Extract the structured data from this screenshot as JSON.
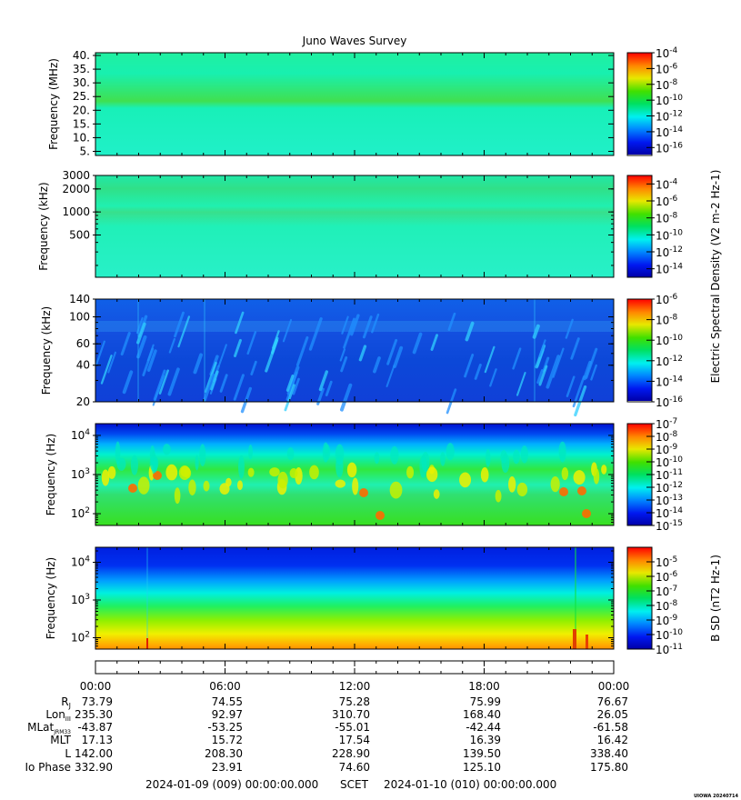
{
  "chart_data": {
    "type": "heatmap",
    "title": "Juno Waves Survey",
    "time_axis": {
      "ticks": [
        "00:00",
        "06:00",
        "12:00",
        "18:00",
        "00:00"
      ],
      "start": "2024-01-09 (009) 00:00:00.000",
      "scet_label": "SCET",
      "end": "2024-01-10 (010) 00:00:00.000"
    },
    "panels": [
      {
        "id": "p1",
        "ylabel": "Frequency (MHz)",
        "yscale": "linear",
        "ylim": [
          3.5,
          41
        ],
        "yticks": [
          "40.",
          "35.",
          "30.",
          "25.",
          "20.",
          "15.",
          "10.",
          "5."
        ],
        "ytick_values": [
          40,
          35,
          30,
          25,
          20,
          15,
          10,
          5
        ],
        "colorbar": {
          "ticks": [
            "10-4",
            "10-6",
            "10-8",
            "10-10",
            "10-12",
            "10-14",
            "10-16"
          ],
          "exp": [
            -4,
            -6,
            -8,
            -10,
            -12,
            -14,
            -16
          ],
          "range": [
            -17,
            -4
          ]
        }
      },
      {
        "id": "p2",
        "ylabel": "Frequency (kHz)",
        "yscale": "log",
        "ylim": [
          140,
          3000
        ],
        "yticks": [
          "3000",
          "2000",
          "1000",
          "500"
        ],
        "ytick_values": [
          3000,
          2000,
          1000,
          500
        ],
        "colorbar": {
          "ticks": [
            "10-4",
            "10-6",
            "10-8",
            "10-10",
            "10-12",
            "10-14"
          ],
          "exp": [
            -4,
            -6,
            -8,
            -10,
            -12,
            -14
          ],
          "range": [
            -15,
            -3
          ]
        }
      },
      {
        "id": "p3",
        "ylabel": "Frequency (kHz)",
        "yscale": "log",
        "ylim": [
          20,
          140
        ],
        "yticks": [
          "140",
          "100",
          "60",
          "40",
          "20"
        ],
        "ytick_values": [
          140,
          100,
          60,
          40,
          20
        ],
        "colorbar": {
          "ticks": [
            "10-6",
            "10-8",
            "10-10",
            "10-12",
            "10-14",
            "10-16"
          ],
          "exp": [
            -6,
            -8,
            -10,
            -12,
            -14,
            -16
          ],
          "range": [
            -16,
            -6
          ]
        }
      },
      {
        "id": "p4",
        "ylabel": "Frequency (Hz)",
        "yscale": "log",
        "ylim": [
          50,
          20000
        ],
        "yticks": [
          "10^4",
          "10^3",
          "10^2"
        ],
        "ytick_values": [
          10000,
          1000,
          100
        ],
        "colorbar": {
          "ticks": [
            "10-7",
            "10-8",
            "10-9",
            "10-10",
            "10-11",
            "10-12",
            "10-13",
            "10-14",
            "10-15"
          ],
          "exp": [
            -7,
            -8,
            -9,
            -10,
            -11,
            -12,
            -13,
            -14,
            -15
          ],
          "range": [
            -15,
            -7
          ]
        }
      },
      {
        "id": "p5",
        "ylabel": "Frequency (Hz)",
        "yscale": "log",
        "ylim": [
          50,
          25000
        ],
        "yticks": [
          "10^4",
          "10^3",
          "10^2"
        ],
        "ytick_values": [
          10000,
          1000,
          100
        ],
        "colorbar": {
          "ticks": [
            "10-5",
            "10-6",
            "10-7",
            "10-8",
            "10-9",
            "10-10",
            "10-11"
          ],
          "exp": [
            -5,
            -6,
            -7,
            -8,
            -9,
            -10,
            -11
          ],
          "range": [
            -11,
            -4
          ]
        }
      }
    ],
    "colorbar_labels": {
      "electric": "Electric Spectral Density (V2 m-2 Hz-1)",
      "magnetic": "B SD (nT2 Hz-1)"
    },
    "ephemeris": {
      "rows": [
        {
          "label": "RJ",
          "values": [
            "73.79",
            "74.55",
            "75.28",
            "75.99",
            "76.67"
          ]
        },
        {
          "label": "LonIII",
          "values": [
            "235.30",
            "92.97",
            "310.70",
            "168.40",
            "26.05"
          ]
        },
        {
          "label": "MLatJRM33",
          "values": [
            "-43.87",
            "-53.25",
            "-55.01",
            "-42.44",
            "-61.58"
          ]
        },
        {
          "label": "MLT",
          "values": [
            "17.13",
            "15.72",
            "17.54",
            "16.39",
            "16.42"
          ]
        },
        {
          "label": "L",
          "values": [
            "142.00",
            "208.30",
            "228.90",
            "139.50",
            "338.40"
          ]
        },
        {
          "label": "Io Phase",
          "values": [
            "332.90",
            "23.91",
            "74.60",
            "125.10",
            "175.80"
          ]
        }
      ]
    }
  },
  "footer": {
    "credit": "UIOWA 20240714"
  }
}
